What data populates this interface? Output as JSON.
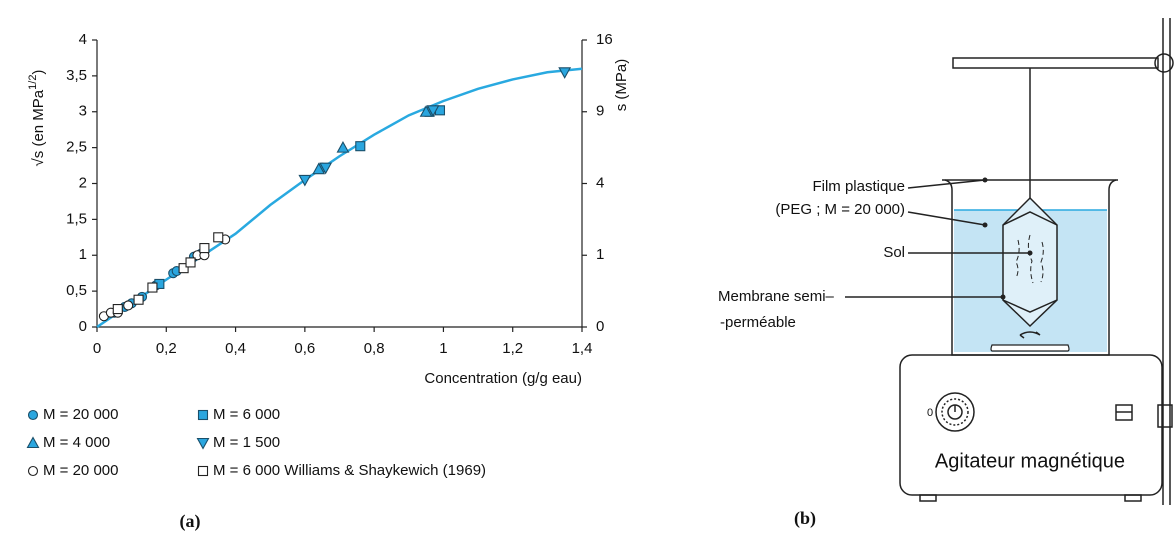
{
  "chart_data": {
    "type": "scatter",
    "x_label": "Concentration (g/g eau)",
    "y_label_parts": [
      "√s (en MPa",
      "1/2",
      ")"
    ],
    "y2_label": "s (MPa)",
    "caption": "(a)",
    "xlim": [
      0,
      1.4
    ],
    "xticks": [
      0,
      {
        "value": 0.2,
        "label": "0,2"
      },
      {
        "value": 0.4,
        "label": "0,4"
      },
      {
        "value": 0.6,
        "label": "0,6"
      },
      {
        "value": 0.8,
        "label": "0,8"
      },
      1,
      {
        "value": 1.2,
        "label": "1,2"
      },
      {
        "value": 1.4,
        "label": "1,4"
      }
    ],
    "ylim": [
      0,
      4
    ],
    "yticks": [
      0,
      {
        "value": 0.5,
        "label": "0,5"
      },
      1,
      {
        "value": 1.5,
        "label": "1,5"
      },
      2,
      {
        "value": 2.5,
        "label": "2,5"
      },
      3,
      {
        "value": 3.5,
        "label": "3,5"
      },
      4
    ],
    "y2lim": [
      0,
      16
    ],
    "y2ticks": [
      0,
      1,
      4,
      9,
      16
    ],
    "y2scale": "sqrt",
    "curve": {
      "color": "#29a9e0",
      "x": [
        0,
        0.1,
        0.2,
        0.3,
        0.4,
        0.5,
        0.6,
        0.7,
        0.8,
        0.9,
        1.0,
        1.1,
        1.2,
        1.3,
        1.4
      ],
      "values": [
        0,
        0.33,
        0.66,
        0.98,
        1.3,
        1.7,
        2.05,
        2.38,
        2.68,
        2.95,
        3.15,
        3.32,
        3.45,
        3.55,
        3.6
      ]
    },
    "series": [
      {
        "name": "M = 20 000",
        "marker": "circle",
        "filled": true,
        "color": "#2aa6df",
        "x": [
          0.05,
          0.08,
          0.1,
          0.13,
          0.17,
          0.22,
          0.23,
          0.28,
          0.3,
          0.65
        ],
        "values": [
          0.2,
          0.28,
          0.33,
          0.42,
          0.58,
          0.75,
          0.78,
          0.98,
          1.02,
          2.22
        ]
      },
      {
        "name": "M = 6 000",
        "marker": "square",
        "filled": true,
        "color": "#2aa6df",
        "x": [
          0.18,
          0.76,
          0.96,
          0.99
        ],
        "values": [
          0.6,
          2.52,
          3.0,
          3.02
        ]
      },
      {
        "name": "M = 4 000",
        "marker": "triangle-up",
        "filled": true,
        "color": "#2aa6df",
        "x": [
          0.64,
          0.71,
          0.95
        ],
        "values": [
          2.2,
          2.5,
          3.0
        ]
      },
      {
        "name": "M = 1 500",
        "marker": "triangle-down",
        "filled": true,
        "color": "#2aa6df",
        "x": [
          0.6,
          0.66,
          0.97,
          1.35
        ],
        "values": [
          2.05,
          2.22,
          3.02,
          3.55
        ]
      },
      {
        "name": "M = 20 000",
        "marker": "circle",
        "filled": false,
        "color": "#ffffff",
        "x": [
          0.02,
          0.04,
          0.06,
          0.09,
          0.29,
          0.31,
          0.37
        ],
        "values": [
          0.15,
          0.2,
          0.2,
          0.3,
          1.0,
          1.0,
          1.22
        ]
      },
      {
        "name": "M = 6 000 Williams & Shaykewich (1969)",
        "marker": "square",
        "filled": false,
        "color": "#ffffff",
        "x": [
          0.06,
          0.12,
          0.16,
          0.25,
          0.27,
          0.31,
          0.35
        ],
        "values": [
          0.25,
          0.38,
          0.55,
          0.82,
          0.9,
          1.1,
          1.25
        ]
      }
    ]
  },
  "diagram": {
    "caption": "(b)",
    "labels": {
      "film": "Film plastique",
      "peg": "(PEG ; M = 20 000)",
      "sol": "Sol",
      "membrane_1": "Membrane semi–",
      "membrane_2": "-perméable",
      "stirrer": "Agitateur magnétique",
      "knob": "0"
    }
  }
}
